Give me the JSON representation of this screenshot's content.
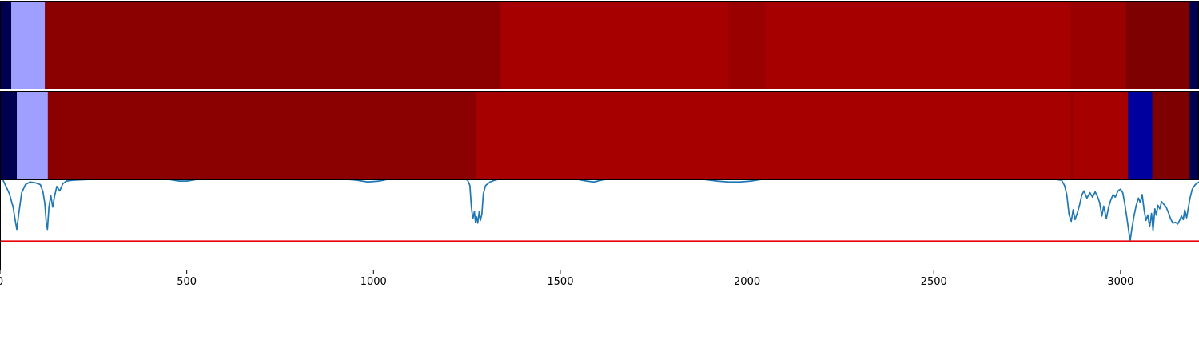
{
  "chart_data": {
    "type": "heatmap",
    "xlim": [
      0,
      3210
    ],
    "x_ticks": [
      0,
      500,
      1000,
      1500,
      2000,
      2500,
      3000
    ],
    "x_tick_labels": [
      "0",
      "500",
      "1000",
      "1500",
      "2000",
      "2500",
      "3000"
    ],
    "colors": {
      "navy": "#000050",
      "light_blue": "#9f9fff",
      "blue": "#00009e",
      "dark_red": "#8b0000",
      "red": "#a60000",
      "mid_red": "#9a0000",
      "deep_red": "#7f0000",
      "line": "#1f77b4",
      "threshold": "#e8000b",
      "axis": "#000000"
    },
    "tracks": [
      {
        "segments": [
          {
            "start": 0,
            "end": 30,
            "color": "navy"
          },
          {
            "start": 30,
            "end": 120,
            "color": "light_blue"
          },
          {
            "start": 120,
            "end": 1340,
            "color": "dark_red"
          },
          {
            "start": 1340,
            "end": 1950,
            "color": "red"
          },
          {
            "start": 1950,
            "end": 2050,
            "color": "mid_red"
          },
          {
            "start": 2050,
            "end": 2865,
            "color": "red"
          },
          {
            "start": 2865,
            "end": 3015,
            "color": "mid_red"
          },
          {
            "start": 3015,
            "end": 3185,
            "color": "deep_red"
          },
          {
            "start": 3185,
            "end": 3210,
            "color": "navy"
          }
        ]
      },
      {
        "segments": [
          {
            "start": 0,
            "end": 45,
            "color": "navy"
          },
          {
            "start": 45,
            "end": 128,
            "color": "light_blue"
          },
          {
            "start": 128,
            "end": 1275,
            "color": "dark_red"
          },
          {
            "start": 1275,
            "end": 2865,
            "color": "red"
          },
          {
            "start": 2865,
            "end": 2875,
            "color": "mid_red"
          },
          {
            "start": 2875,
            "end": 3020,
            "color": "red"
          },
          {
            "start": 3020,
            "end": 3085,
            "color": "blue"
          },
          {
            "start": 3085,
            "end": 3185,
            "color": "deep_red"
          },
          {
            "start": 3185,
            "end": 3210,
            "color": "navy"
          }
        ]
      }
    ],
    "signal": {
      "ylim": [
        0,
        1
      ],
      "threshold": 0.32,
      "points": [
        [
          0,
          1.02
        ],
        [
          8,
          1.0
        ],
        [
          15,
          0.94
        ],
        [
          25,
          0.85
        ],
        [
          35,
          0.7
        ],
        [
          42,
          0.52
        ],
        [
          45,
          0.45
        ],
        [
          50,
          0.62
        ],
        [
          58,
          0.86
        ],
        [
          68,
          0.95
        ],
        [
          80,
          0.98
        ],
        [
          95,
          0.97
        ],
        [
          108,
          0.95
        ],
        [
          115,
          0.87
        ],
        [
          120,
          0.74
        ],
        [
          124,
          0.52
        ],
        [
          127,
          0.45
        ],
        [
          131,
          0.7
        ],
        [
          136,
          0.83
        ],
        [
          141,
          0.7
        ],
        [
          146,
          0.82
        ],
        [
          152,
          0.93
        ],
        [
          160,
          0.88
        ],
        [
          168,
          0.96
        ],
        [
          178,
          0.99
        ],
        [
          195,
          1.0
        ],
        [
          250,
          1.01
        ],
        [
          350,
          1.02
        ],
        [
          400,
          1.02
        ],
        [
          450,
          1.01
        ],
        [
          480,
          0.99
        ],
        [
          500,
          0.99
        ],
        [
          530,
          1.01
        ],
        [
          600,
          1.02
        ],
        [
          900,
          1.02
        ],
        [
          955,
          1.0
        ],
        [
          985,
          0.98
        ],
        [
          1015,
          0.99
        ],
        [
          1050,
          1.02
        ],
        [
          1150,
          1.02
        ],
        [
          1240,
          1.02
        ],
        [
          1252,
          1.0
        ],
        [
          1258,
          0.94
        ],
        [
          1262,
          0.7
        ],
        [
          1266,
          0.57
        ],
        [
          1270,
          0.65
        ],
        [
          1273,
          0.53
        ],
        [
          1276,
          0.59
        ],
        [
          1279,
          0.52
        ],
        [
          1283,
          0.65
        ],
        [
          1286,
          0.55
        ],
        [
          1290,
          0.62
        ],
        [
          1294,
          0.85
        ],
        [
          1300,
          0.94
        ],
        [
          1312,
          0.98
        ],
        [
          1325,
          1.0
        ],
        [
          1345,
          1.02
        ],
        [
          1500,
          1.02
        ],
        [
          1545,
          1.01
        ],
        [
          1570,
          0.99
        ],
        [
          1590,
          0.98
        ],
        [
          1610,
          1.0
        ],
        [
          1640,
          1.02
        ],
        [
          1800,
          1.02
        ],
        [
          1880,
          1.01
        ],
        [
          1920,
          0.99
        ],
        [
          1950,
          0.98
        ],
        [
          1980,
          0.98
        ],
        [
          2010,
          0.99
        ],
        [
          2040,
          1.01
        ],
        [
          2070,
          1.02
        ],
        [
          2500,
          1.02
        ],
        [
          2800,
          1.02
        ],
        [
          2842,
          1.0
        ],
        [
          2850,
          0.94
        ],
        [
          2856,
          0.84
        ],
        [
          2862,
          0.62
        ],
        [
          2868,
          0.54
        ],
        [
          2873,
          0.67
        ],
        [
          2878,
          0.56
        ],
        [
          2884,
          0.63
        ],
        [
          2890,
          0.72
        ],
        [
          2896,
          0.83
        ],
        [
          2902,
          0.88
        ],
        [
          2910,
          0.8
        ],
        [
          2918,
          0.86
        ],
        [
          2925,
          0.81
        ],
        [
          2932,
          0.87
        ],
        [
          2938,
          0.82
        ],
        [
          2944,
          0.75
        ],
        [
          2950,
          0.6
        ],
        [
          2955,
          0.71
        ],
        [
          2962,
          0.57
        ],
        [
          2968,
          0.7
        ],
        [
          2974,
          0.78
        ],
        [
          2980,
          0.84
        ],
        [
          2986,
          0.81
        ],
        [
          2993,
          0.88
        ],
        [
          3000,
          0.9
        ],
        [
          3006,
          0.86
        ],
        [
          3012,
          0.72
        ],
        [
          3018,
          0.55
        ],
        [
          3023,
          0.4
        ],
        [
          3026,
          0.33
        ],
        [
          3030,
          0.45
        ],
        [
          3036,
          0.6
        ],
        [
          3042,
          0.72
        ],
        [
          3048,
          0.8
        ],
        [
          3053,
          0.75
        ],
        [
          3058,
          0.84
        ],
        [
          3063,
          0.67
        ],
        [
          3068,
          0.55
        ],
        [
          3073,
          0.61
        ],
        [
          3078,
          0.48
        ],
        [
          3083,
          0.63
        ],
        [
          3087,
          0.44
        ],
        [
          3092,
          0.68
        ],
        [
          3096,
          0.61
        ],
        [
          3100,
          0.72
        ],
        [
          3105,
          0.68
        ],
        [
          3110,
          0.76
        ],
        [
          3116,
          0.73
        ],
        [
          3122,
          0.7
        ],
        [
          3128,
          0.64
        ],
        [
          3134,
          0.57
        ],
        [
          3140,
          0.52
        ],
        [
          3147,
          0.53
        ],
        [
          3153,
          0.51
        ],
        [
          3158,
          0.55
        ],
        [
          3163,
          0.6
        ],
        [
          3168,
          0.56
        ],
        [
          3172,
          0.67
        ],
        [
          3177,
          0.58
        ],
        [
          3181,
          0.68
        ],
        [
          3186,
          0.8
        ],
        [
          3192,
          0.9
        ],
        [
          3200,
          0.95
        ],
        [
          3210,
          0.98
        ]
      ]
    }
  }
}
